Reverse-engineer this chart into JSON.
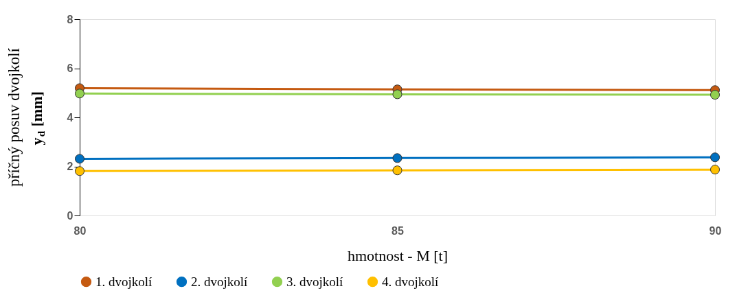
{
  "chart_data": {
    "type": "line",
    "xlabel": "hmotnost - M [t]",
    "ylabel": "příčný posuv dvojkolí y$_{d}$ [mm]",
    "x": [
      80,
      85,
      90
    ],
    "xlim": [
      80,
      90
    ],
    "xticks": [
      80,
      85,
      90
    ],
    "ylim": [
      0,
      8
    ],
    "yticks": [
      0,
      2,
      4,
      6,
      8
    ],
    "grid": false,
    "legend": "bottom",
    "marker": "circle",
    "line_style": "solid",
    "series": [
      {
        "name": "1. dvojkolí",
        "color": "#c55a11",
        "values": [
          5.19,
          5.14,
          5.11
        ]
      },
      {
        "name": "2. dvojkolí",
        "color": "#0070c0",
        "values": [
          2.31,
          2.34,
          2.37
        ]
      },
      {
        "name": "3. dvojkolí",
        "color": "#92d050",
        "values": [
          4.97,
          4.94,
          4.92
        ]
      },
      {
        "name": "4. dvojkolí",
        "color": "#ffc000",
        "values": [
          1.81,
          1.84,
          1.87
        ]
      }
    ]
  }
}
